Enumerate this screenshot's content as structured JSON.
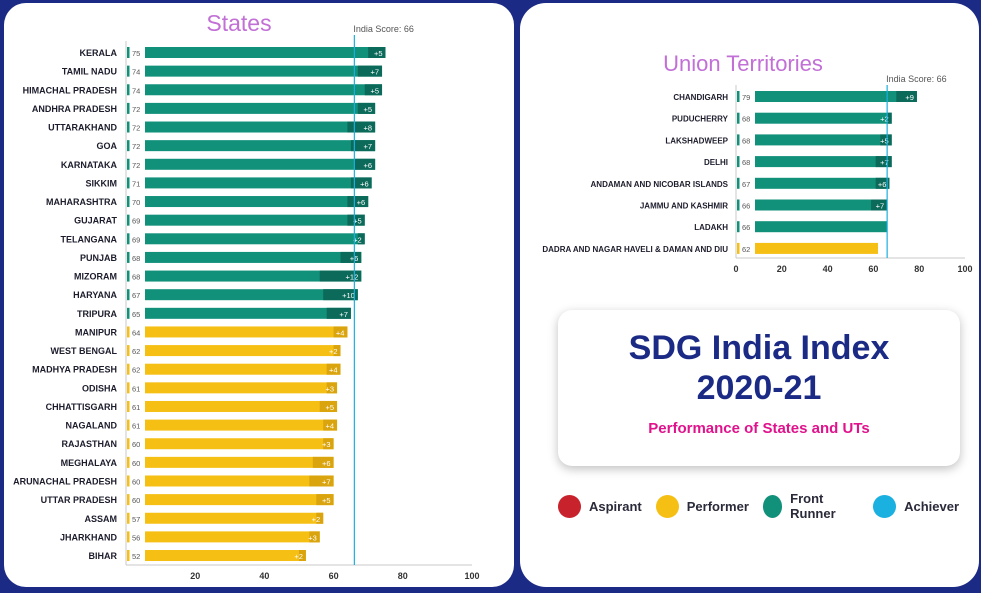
{
  "colors": {
    "aspirant": "#c8232c",
    "performer": "#f5bf14",
    "front_runner": "#11907a",
    "achiever": "#1ab0e0",
    "change_dark": "#0b6a5a",
    "change_dark_yellow": "#d9a40d",
    "title_purple": "#c26fd6",
    "navy": "#1b2a84",
    "magenta": "#e0128c"
  },
  "info": {
    "title_line1": "SDG India Index",
    "title_line2": "2020-21",
    "subtitle": "Performance of States and UTs"
  },
  "legend": [
    {
      "label": "Aspirant",
      "color": "#c8232c"
    },
    {
      "label": "Performer",
      "color": "#f5bf14"
    },
    {
      "label": "Front Runner",
      "color": "#11907a"
    },
    {
      "label": "Achiever",
      "color": "#1ab0e0"
    }
  ],
  "chart_data": [
    {
      "type": "bar",
      "orientation": "horizontal",
      "title": "States",
      "reference_line": {
        "label": "India Score: 66",
        "value": 66
      },
      "xlim": [
        0,
        100
      ],
      "xticks": [
        20,
        40,
        60,
        80,
        100
      ],
      "categories": [
        "KERALA",
        "TAMIL NADU",
        "HIMACHAL PRADESH",
        "ANDHRA PRADESH",
        "UTTARAKHAND",
        "GOA",
        "KARNATAKA",
        "SIKKIM",
        "MAHARASHTRA",
        "GUJARAT",
        "TELANGANA",
        "PUNJAB",
        "MIZORAM",
        "HARYANA",
        "TRIPURA",
        "MANIPUR",
        "WEST BENGAL",
        "MADHYA PRADESH",
        "ODISHA",
        "CHHATTISGARH",
        "NAGALAND",
        "RAJASTHAN",
        "MEGHALAYA",
        "ARUNACHAL PRADESH",
        "UTTAR PRADESH",
        "ASSAM",
        "JHARKHAND",
        "BIHAR"
      ],
      "values": [
        75,
        74,
        74,
        72,
        72,
        72,
        72,
        71,
        70,
        69,
        69,
        68,
        68,
        67,
        65,
        64,
        62,
        62,
        61,
        61,
        61,
        60,
        60,
        60,
        60,
        57,
        56,
        52
      ],
      "changes": [
        5,
        7,
        5,
        5,
        8,
        7,
        6,
        6,
        6,
        5,
        2,
        6,
        12,
        10,
        7,
        4,
        2,
        4,
        3,
        5,
        4,
        3,
        6,
        7,
        5,
        2,
        3,
        2
      ],
      "change_labels": [
        "+5",
        "+7",
        "+5",
        "+5",
        "+8",
        "+7",
        "+6",
        "+6",
        "+6",
        "+5",
        "+2",
        "+6",
        "+12",
        "+10",
        "+7",
        "+4",
        "+2",
        "+4",
        "+3",
        "+5",
        "+4",
        "+3",
        "+6",
        "+7",
        "+5",
        "+2",
        "+3",
        "+2"
      ],
      "categories_class": [
        "front_runner",
        "front_runner",
        "front_runner",
        "front_runner",
        "front_runner",
        "front_runner",
        "front_runner",
        "front_runner",
        "front_runner",
        "front_runner",
        "front_runner",
        "front_runner",
        "front_runner",
        "front_runner",
        "front_runner",
        "performer",
        "performer",
        "performer",
        "performer",
        "performer",
        "performer",
        "performer",
        "performer",
        "performer",
        "performer",
        "performer",
        "performer",
        "performer"
      ]
    },
    {
      "type": "bar",
      "orientation": "horizontal",
      "title": "Union Territories",
      "reference_line": {
        "label": "India Score: 66",
        "value": 66
      },
      "xlim": [
        0,
        100
      ],
      "xticks": [
        0,
        20,
        40,
        60,
        80,
        100
      ],
      "categories": [
        "CHANDIGARH",
        "PUDUCHERRY",
        "LAKSHADWEEP",
        "DELHI",
        "ANDAMAN AND NICOBAR ISLANDS",
        "JAMMU AND KASHMIR",
        "LADAKH",
        "DADRA AND NAGAR HAVELI & DAMAN AND DIU"
      ],
      "values": [
        79,
        68,
        68,
        68,
        67,
        66,
        66,
        62
      ],
      "changes": [
        9,
        2,
        5,
        7,
        6,
        7,
        null,
        null
      ],
      "change_labels": [
        "+9",
        "+2",
        "+5",
        "+7",
        "+6",
        "+7",
        "",
        ""
      ],
      "categories_class": [
        "front_runner",
        "front_runner",
        "front_runner",
        "front_runner",
        "front_runner",
        "front_runner",
        "front_runner",
        "performer"
      ]
    }
  ]
}
